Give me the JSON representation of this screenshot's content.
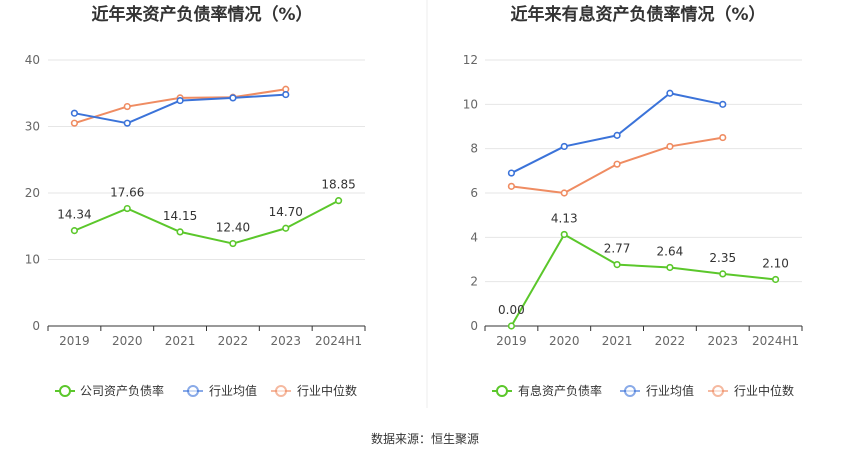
{
  "source_text": "数据来源：恒生聚源",
  "colors": {
    "green": "#5bc72b",
    "blue": "#3b73d9",
    "orange": "#ef8c62"
  },
  "chart_data": [
    {
      "type": "line",
      "title": "近年来资产负债率情况（%）",
      "x": [
        "2019",
        "2020",
        "2021",
        "2022",
        "2023",
        "2024H1"
      ],
      "ylim": [
        0,
        40
      ],
      "yticks": [
        "0",
        "10",
        "20",
        "30",
        "40"
      ],
      "grid": true,
      "legend_position": "bottom",
      "series": [
        {
          "name": "公司资产负债率",
          "color": "#5bc72b",
          "values": [
            14.34,
            17.66,
            14.15,
            12.4,
            14.7,
            18.85
          ],
          "labels": [
            "14.34",
            "17.66",
            "14.15",
            "12.40",
            "14.70",
            "18.85"
          ]
        },
        {
          "name": "行业均值",
          "color": "#3b73d9",
          "values": [
            32.0,
            30.5,
            33.9,
            34.3,
            34.8,
            null
          ]
        },
        {
          "name": "行业中位数",
          "color": "#ef8c62",
          "values": [
            30.5,
            33.0,
            34.3,
            34.4,
            35.6,
            null
          ]
        }
      ]
    },
    {
      "type": "line",
      "title": "近年来有息资产负债率情况（%）",
      "x": [
        "2019",
        "2020",
        "2021",
        "2022",
        "2023",
        "2024H1"
      ],
      "ylim": [
        0,
        12
      ],
      "yticks": [
        "0",
        "2",
        "4",
        "6",
        "8",
        "10",
        "12"
      ],
      "grid": true,
      "legend_position": "bottom",
      "series": [
        {
          "name": "有息资产负债率",
          "color": "#5bc72b",
          "values": [
            0.0,
            4.13,
            2.77,
            2.64,
            2.35,
            2.1
          ],
          "labels": [
            "0.00",
            "4.13",
            "2.77",
            "2.64",
            "2.35",
            "2.10"
          ]
        },
        {
          "name": "行业均值",
          "color": "#3b73d9",
          "values": [
            6.9,
            8.1,
            8.6,
            10.5,
            10.0,
            null
          ]
        },
        {
          "name": "行业中位数",
          "color": "#ef8c62",
          "values": [
            6.3,
            6.0,
            7.3,
            8.1,
            8.5,
            null
          ]
        }
      ]
    }
  ]
}
